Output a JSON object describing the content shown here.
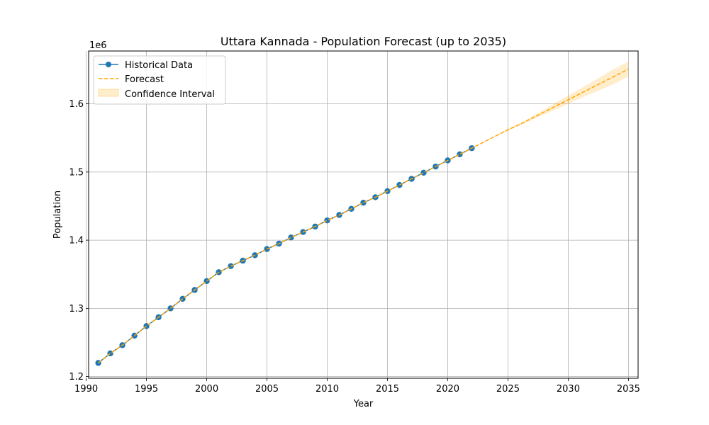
{
  "chart_data": {
    "type": "line",
    "title": "Uttara Kannada - Population Forecast (up to 2035)",
    "xlabel": "Year",
    "ylabel": "Population",
    "y_scale_label": "1e6",
    "y_scale": 1000000,
    "xlim": [
      1990.2,
      2035.8
    ],
    "ylim": [
      1197500,
      1677500
    ],
    "x_ticks": [
      1990,
      1995,
      2000,
      2005,
      2010,
      2015,
      2020,
      2025,
      2030,
      2035
    ],
    "y_ticks": [
      1.2,
      1.3,
      1.4,
      1.5,
      1.6
    ],
    "y_tick_labels": [
      "1.2",
      "1.3",
      "1.4",
      "1.5",
      "1.6"
    ],
    "grid": true,
    "legend_position": "top-left",
    "series": [
      {
        "name": "Historical Data",
        "color": "#1f77b4",
        "style": "solid-with-markers",
        "x": [
          1991,
          1992,
          1993,
          1994,
          1995,
          1996,
          1997,
          1998,
          1999,
          2000,
          2001,
          2002,
          2003,
          2004,
          2005,
          2006,
          2007,
          2008,
          2009,
          2010,
          2011,
          2012,
          2013,
          2014,
          2015,
          2016,
          2017,
          2018,
          2019,
          2020,
          2021,
          2022
        ],
        "y": [
          1220000,
          1234000,
          1246000,
          1260000,
          1274000,
          1287000,
          1300000,
          1314000,
          1327000,
          1340000,
          1353000,
          1362000,
          1370000,
          1378000,
          1387000,
          1395000,
          1404000,
          1412000,
          1420000,
          1429000,
          1437000,
          1446000,
          1455000,
          1463000,
          1472000,
          1481000,
          1490000,
          1499000,
          1508000,
          1517000,
          1526000,
          1535000
        ]
      },
      {
        "name": "Forecast",
        "color": "#ffa500",
        "style": "dashed",
        "x": [
          1991,
          1992,
          1993,
          1994,
          1995,
          1996,
          1997,
          1998,
          1999,
          2000,
          2001,
          2002,
          2003,
          2004,
          2005,
          2006,
          2007,
          2008,
          2009,
          2010,
          2011,
          2012,
          2013,
          2014,
          2015,
          2016,
          2017,
          2018,
          2019,
          2020,
          2021,
          2022,
          2023,
          2024,
          2025,
          2026,
          2027,
          2028,
          2029,
          2030,
          2031,
          2032,
          2033,
          2034,
          2035
        ],
        "y": [
          1220000,
          1234000,
          1246000,
          1260000,
          1274000,
          1287000,
          1300000,
          1314000,
          1327000,
          1340000,
          1353000,
          1362000,
          1370000,
          1378000,
          1387000,
          1395000,
          1404000,
          1412000,
          1420000,
          1429000,
          1437000,
          1446000,
          1455000,
          1463000,
          1472000,
          1481000,
          1490000,
          1499000,
          1508000,
          1517000,
          1526000,
          1535000,
          1544000,
          1553000,
          1562000,
          1570000,
          1579000,
          1588000,
          1597000,
          1606000,
          1615000,
          1624000,
          1633000,
          1642000,
          1651000
        ]
      }
    ],
    "confidence_interval": {
      "name": "Confidence Interval",
      "color": "#ffa500",
      "opacity": 0.2,
      "x": [
        2022,
        2023,
        2024,
        2025,
        2026,
        2027,
        2028,
        2029,
        2030,
        2031,
        2032,
        2033,
        2034,
        2035
      ],
      "lower": [
        1535000,
        1543600,
        1552000,
        1560500,
        1568500,
        1576500,
        1584500,
        1592000,
        1600000,
        1608000,
        1615500,
        1623000,
        1631000,
        1640000
      ],
      "upper": [
        1535000,
        1544400,
        1554000,
        1563500,
        1571500,
        1581500,
        1591500,
        1602000,
        1612000,
        1622000,
        1632500,
        1643000,
        1653000,
        1662000
      ]
    }
  }
}
